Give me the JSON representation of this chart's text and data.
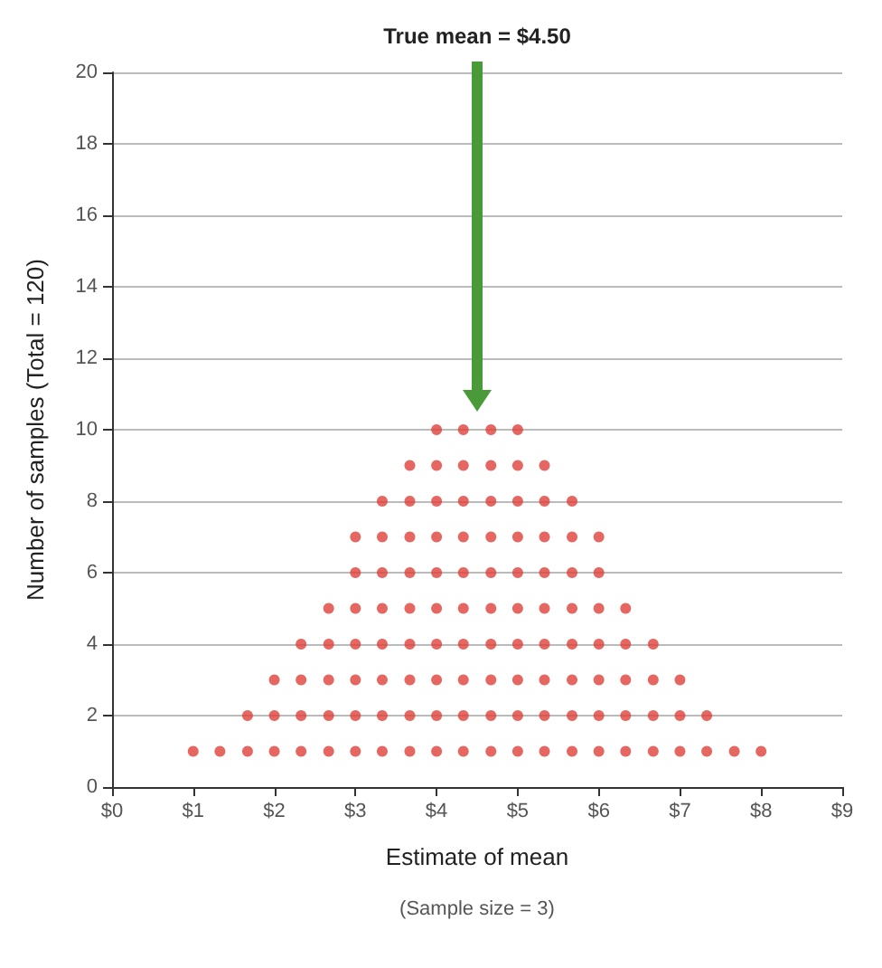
{
  "chart_data": {
    "type": "scatter",
    "xlabel": "Estimate of mean",
    "ylabel": "Number of samples (Total = 120)",
    "annotations": [
      "True mean = $4.50",
      "(Sample size = 3)"
    ],
    "xlim": [
      0,
      9
    ],
    "xticks": [
      {
        "value": 0,
        "label": "$0"
      },
      {
        "value": 1,
        "label": "$1"
      },
      {
        "value": 2,
        "label": "$2"
      },
      {
        "value": 3,
        "label": "$3"
      },
      {
        "value": 4,
        "label": "$4"
      },
      {
        "value": 5,
        "label": "$5"
      },
      {
        "value": 6,
        "label": "$6"
      },
      {
        "value": 7,
        "label": "$7"
      },
      {
        "value": 8,
        "label": "$8"
      },
      {
        "value": 9,
        "label": "$9"
      }
    ],
    "ylim": [
      0,
      20
    ],
    "yticks": [
      0,
      2,
      4,
      6,
      8,
      10,
      12,
      14,
      16,
      18,
      20
    ],
    "grid": "y",
    "marker": "circle",
    "series": [
      {
        "color": "#e0403a",
        "x": [
          1,
          1.33,
          1.67,
          1.67,
          2,
          2,
          2,
          2.33,
          2.33,
          2.33,
          2.33,
          2.67,
          2.67,
          2.67,
          2.67,
          2.67,
          3,
          3,
          3,
          3,
          3,
          3,
          3,
          3.33,
          3.33,
          3.33,
          3.33,
          3.33,
          3.33,
          3.33,
          3.33,
          3.67,
          3.67,
          3.67,
          3.67,
          3.67,
          3.67,
          3.67,
          3.67,
          3.67,
          4,
          4,
          4,
          4,
          4,
          4,
          4,
          4,
          4,
          4,
          4.33,
          4.33,
          4.33,
          4.33,
          4.33,
          4.33,
          4.33,
          4.33,
          4.33,
          4.33,
          4.67,
          4.67,
          4.67,
          4.67,
          4.67,
          4.67,
          4.67,
          4.67,
          4.67,
          4.67,
          5,
          5,
          5,
          5,
          5,
          5,
          5,
          5,
          5,
          5,
          5.33,
          5.33,
          5.33,
          5.33,
          5.33,
          5.33,
          5.33,
          5.33,
          5.33,
          5.67,
          5.67,
          5.67,
          5.67,
          5.67,
          5.67,
          5.67,
          5.67,
          6,
          6,
          6,
          6,
          6,
          6,
          6,
          6.33,
          6.33,
          6.33,
          6.33,
          6.33,
          6.67,
          6.67,
          6.67,
          6.67,
          7,
          7,
          7,
          7.33,
          7.33,
          7.67,
          8
        ],
        "values": [
          1,
          1,
          1,
          2,
          1,
          2,
          3,
          1,
          2,
          3,
          4,
          1,
          2,
          3,
          4,
          5,
          1,
          2,
          3,
          4,
          5,
          6,
          7,
          1,
          2,
          3,
          4,
          5,
          6,
          7,
          8,
          1,
          2,
          3,
          4,
          5,
          6,
          7,
          8,
          9,
          1,
          2,
          3,
          4,
          5,
          6,
          7,
          8,
          9,
          10,
          1,
          2,
          3,
          4,
          5,
          6,
          7,
          8,
          9,
          10,
          1,
          2,
          3,
          4,
          5,
          6,
          7,
          8,
          9,
          10,
          1,
          2,
          3,
          4,
          5,
          6,
          7,
          8,
          9,
          10,
          1,
          2,
          3,
          4,
          5,
          6,
          7,
          8,
          9,
          1,
          2,
          3,
          4,
          5,
          6,
          7,
          8,
          1,
          2,
          3,
          4,
          5,
          6,
          7,
          1,
          2,
          3,
          4,
          5,
          1,
          2,
          3,
          4,
          1,
          2,
          3,
          1,
          2,
          1,
          1
        ]
      }
    ]
  }
}
